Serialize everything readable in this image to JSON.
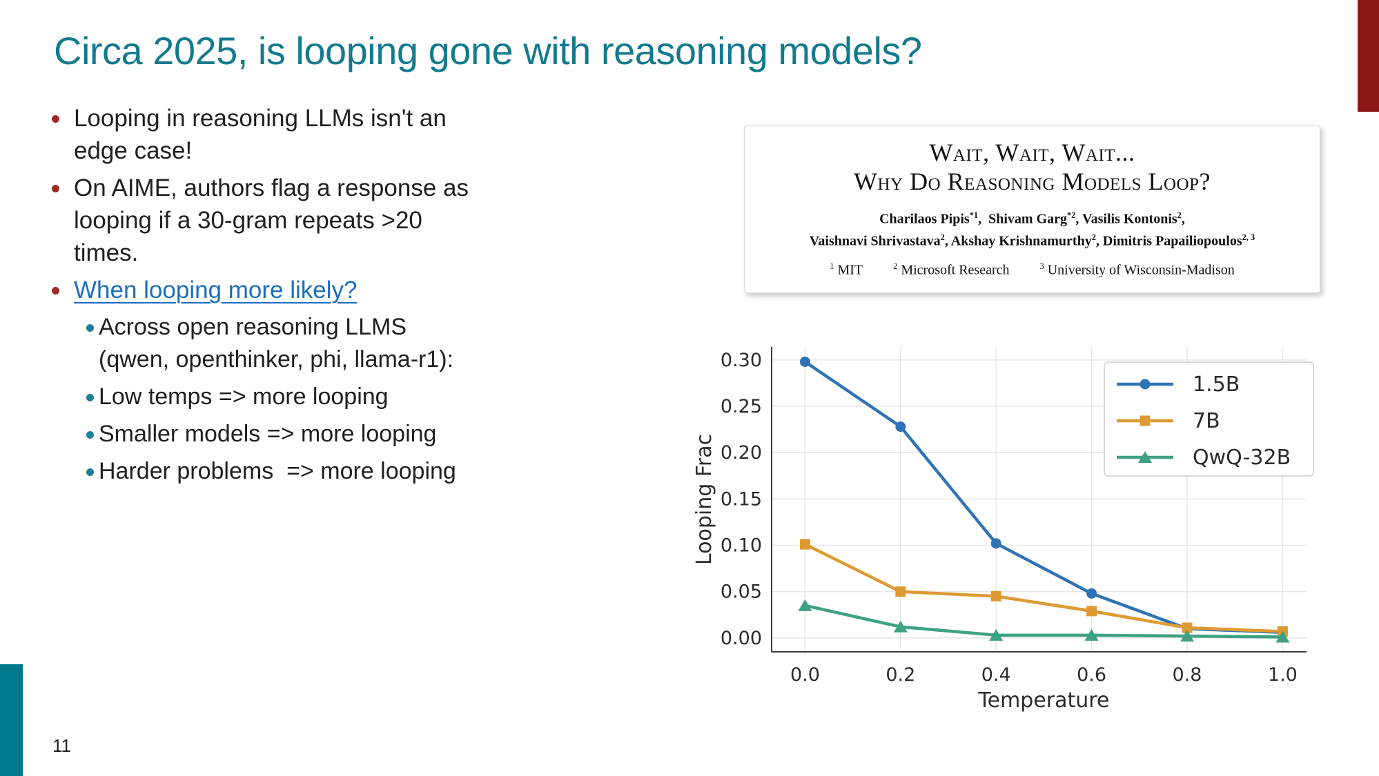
{
  "slide": {
    "title": "Circa 2025, is looping gone with reasoning models?",
    "page_number": "11",
    "bullets": [
      {
        "text": "Looping in reasoning LLMs isn't an\nedge case!"
      },
      {
        "text": "On AIME, authors flag a response as\nlooping if a 30-gram repeats >20\ntimes."
      },
      {
        "link": "When looping more likely?"
      }
    ],
    "sub_bullets": [
      "Across open reasoning LLMS\n(qwen, openthinker, phi, llama-r1):",
      "Low temps => more looping",
      "Smaller models => more looping",
      "Harder problems  => more looping"
    ]
  },
  "paper": {
    "title_line1": "Wait, Wait, Wait...",
    "title_line2": "Why Do Reasoning Models Loop?",
    "authors": [
      {
        "name": "Charilaos Pipis",
        "sup": "*1",
        "sep": ",  "
      },
      {
        "name": "Shivam Garg",
        "sup": "*2",
        "sep": ", "
      },
      {
        "name": "Vasilis Kontonis",
        "sup": "2",
        "sep": ","
      },
      {
        "name": "Vaishnavi Shrivastava",
        "sup": "2",
        "sep": ", "
      },
      {
        "name": "Akshay Krishnamurthy",
        "sup": "2",
        "sep": ", "
      },
      {
        "name": "Dimitris Papailiopoulos",
        "sup": "2, 3",
        "sep": ""
      }
    ],
    "affiliations": [
      {
        "sup": "1",
        "name": "MIT"
      },
      {
        "sup": "2",
        "name": "Microsoft Research"
      },
      {
        "sup": "3",
        "name": "University of Wisconsin-Madison"
      }
    ]
  },
  "chart_data": {
    "type": "line",
    "title": "",
    "xlabel": "Temperature",
    "ylabel": "Looping Frac",
    "x": [
      0.0,
      0.2,
      0.4,
      0.6,
      0.8,
      1.0
    ],
    "xticks": [
      0.0,
      0.2,
      0.4,
      0.6,
      0.8,
      1.0
    ],
    "yticks": [
      0.0,
      0.05,
      0.1,
      0.15,
      0.2,
      0.25,
      0.3
    ],
    "xlim": [
      -0.07,
      1.05
    ],
    "ylim": [
      -0.015,
      0.314
    ],
    "grid": true,
    "legend_position": "upper right",
    "series": [
      {
        "name": "1.5B",
        "color": "#2f73b4",
        "marker": "circle",
        "values": [
          0.298,
          0.228,
          0.102,
          0.048,
          0.01,
          0.006
        ]
      },
      {
        "name": "7B",
        "color": "#de9a32",
        "marker": "square",
        "values": [
          0.101,
          0.05,
          0.045,
          0.029,
          0.011,
          0.007
        ]
      },
      {
        "name": "QwQ-32B",
        "color": "#3fa184",
        "marker": "triangle",
        "values": [
          0.035,
          0.012,
          0.003,
          0.003,
          0.002,
          0.001
        ]
      }
    ]
  },
  "colors": {
    "title_teal": "#147a8d",
    "accent_red_bar": "#8c1616",
    "accent_teal_bar": "#00798e",
    "link_blue": "#1b6ec2",
    "main_bullet_dot": "#9e2b25",
    "sub_bullet_dot": "#1e7f95"
  }
}
